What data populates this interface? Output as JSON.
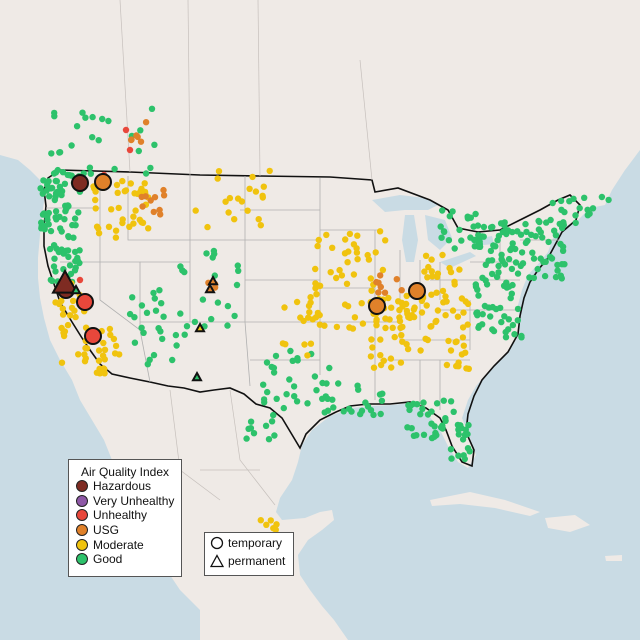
{
  "legend": {
    "title": "Air Quality Index",
    "categories": [
      {
        "label": "Hazardous",
        "color": "#7e2b22"
      },
      {
        "label": "Very Unhealthy",
        "color": "#8e58a6"
      },
      {
        "label": "Unhealthy",
        "color": "#e8473b"
      },
      {
        "label": "USG",
        "color": "#e0812a"
      },
      {
        "label": "Moderate",
        "color": "#f0c30e"
      },
      {
        "label": "Good",
        "color": "#2dc26b"
      }
    ]
  },
  "shape_legend": {
    "temporary": "temporary",
    "permanent": "permanent"
  },
  "colors": {
    "land": "#efeae6",
    "water": "#c9dbe4",
    "state_border": "#b3b3b3",
    "us_border": "#111111"
  }
}
